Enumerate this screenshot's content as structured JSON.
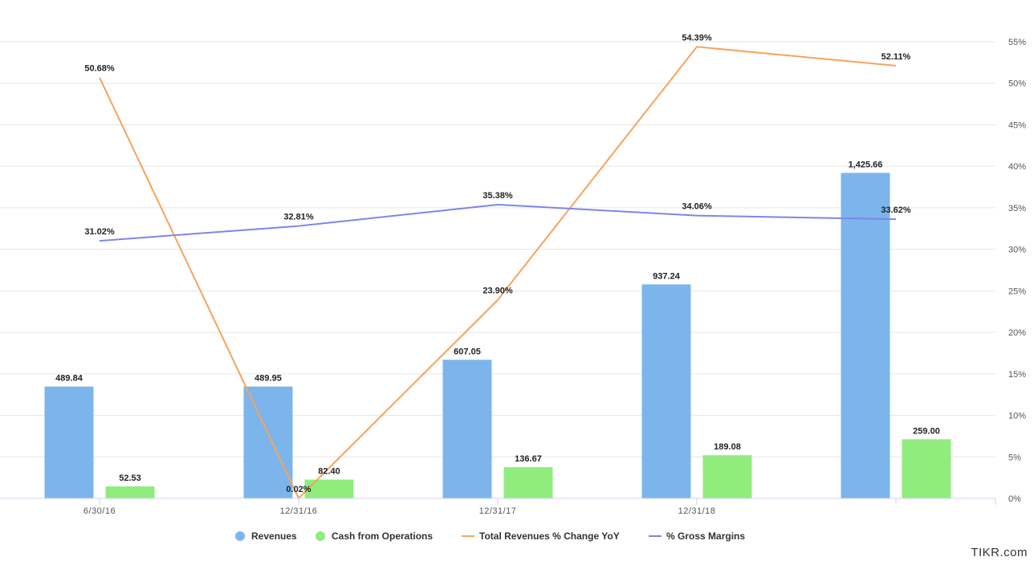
{
  "chart_data": {
    "type": "bar",
    "categories": [
      "6/30/16",
      "12/31/16",
      "12/31/17",
      "12/31/18",
      ""
    ],
    "series": [
      {
        "name": "Revenues",
        "kind": "bar",
        "axis": "left",
        "color": "#7cb5ec",
        "values": [
          489.84,
          489.95,
          607.05,
          937.24,
          1425.66
        ],
        "labels": [
          "489.84",
          "489.95",
          "607.05",
          "937.24",
          "1,425.66"
        ]
      },
      {
        "name": "Cash from Operations",
        "kind": "bar",
        "axis": "left",
        "color": "#90ed7d",
        "values": [
          52.53,
          82.4,
          136.67,
          189.08,
          259.0
        ],
        "labels": [
          "52.53",
          "82.40",
          "136.67",
          "189.08",
          "259.00"
        ]
      },
      {
        "name": "Total Revenues % Change YoY",
        "kind": "line",
        "axis": "right",
        "color": "#f7a35c",
        "values": [
          50.68,
          0.02,
          23.9,
          54.39,
          52.11
        ],
        "labels": [
          "50.68%",
          "0.02%",
          "23.90%",
          "54.39%",
          "52.11%"
        ]
      },
      {
        "name": "% Gross Margins",
        "kind": "line",
        "axis": "right",
        "color": "#8085e9",
        "values": [
          31.02,
          32.81,
          35.38,
          34.06,
          33.62
        ],
        "labels": [
          "31.02%",
          "32.81%",
          "35.38%",
          "34.06%",
          "33.62%"
        ]
      }
    ],
    "left_axis": {
      "min": 0,
      "max": 2000,
      "labels_visible": false
    },
    "right_axis": {
      "min": 0,
      "max": 55,
      "ticks": [
        0,
        5,
        10,
        15,
        20,
        25,
        30,
        35,
        40,
        45,
        50,
        55
      ],
      "tick_labels": [
        "0%",
        "5%",
        "10%",
        "15%",
        "20%",
        "25%",
        "30%",
        "35%",
        "40%",
        "45%",
        "50%",
        "55%"
      ]
    },
    "grid": true,
    "legend": "bottom-center"
  },
  "watermark": "TIKR.com"
}
